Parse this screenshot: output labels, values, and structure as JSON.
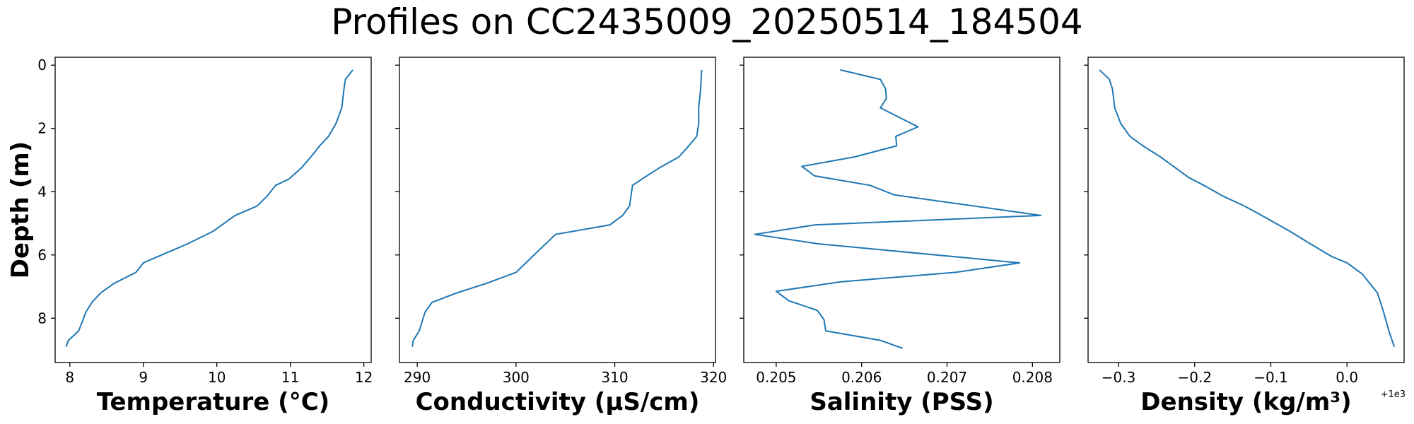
{
  "figure": {
    "title": "Profiles on CC2435009_20250514_184504",
    "series_color": "#1f77b4"
  },
  "chart_data": [
    {
      "type": "line",
      "xlabel": "Temperature (°C)",
      "ylabel": "Depth (m)",
      "xlim": [
        7.8,
        12.1
      ],
      "ylim": [
        9.4,
        -0.25
      ],
      "y_inverted": true,
      "xticks": [
        8,
        9,
        10,
        11,
        12
      ],
      "xtick_labels": [
        "8",
        "9",
        "10",
        "11",
        "12"
      ],
      "yticks": [
        0,
        2,
        4,
        6,
        8
      ],
      "ytick_labels": [
        "0",
        "2",
        "4",
        "6",
        "8"
      ],
      "series": [
        {
          "x": [
            11.85,
            11.75,
            11.73,
            11.7,
            11.62,
            11.52,
            11.4,
            11.28,
            11.15,
            10.98,
            10.8,
            10.68,
            10.55,
            10.25,
            9.95,
            9.6,
            9.0,
            8.9,
            8.6,
            8.42,
            8.3,
            8.22,
            8.12,
            7.98,
            7.95
          ],
          "y": [
            0.15,
            0.45,
            0.75,
            1.35,
            1.85,
            2.25,
            2.55,
            2.9,
            3.25,
            3.6,
            3.8,
            4.15,
            4.45,
            4.75,
            5.25,
            5.65,
            6.25,
            6.55,
            6.9,
            7.2,
            7.5,
            7.8,
            8.4,
            8.7,
            8.9
          ]
        }
      ]
    },
    {
      "type": "line",
      "xlabel": "Conductivity (µS/cm)",
      "ylabel": "",
      "xlim": [
        288.2,
        320.2
      ],
      "ylim": [
        9.4,
        -0.25
      ],
      "y_inverted": true,
      "xticks": [
        290,
        300,
        310,
        320
      ],
      "xtick_labels": [
        "290",
        "300",
        "310",
        "320"
      ],
      "yticks": [
        0,
        2,
        4,
        6,
        8
      ],
      "ytick_labels": [
        "",
        "",
        "",
        "",
        ""
      ],
      "series": [
        {
          "x": [
            318.8,
            318.7,
            318.5,
            318.5,
            318.3,
            317.5,
            316.5,
            314.5,
            313.0,
            311.8,
            311.5,
            310.8,
            309.5,
            304.0,
            301.0,
            300.0,
            297.0,
            294.0,
            291.5,
            290.8,
            290.2,
            289.6,
            289.5
          ],
          "y": [
            0.15,
            0.75,
            1.35,
            1.85,
            2.25,
            2.55,
            2.9,
            3.25,
            3.55,
            3.8,
            4.45,
            4.75,
            5.05,
            5.35,
            6.25,
            6.55,
            6.9,
            7.2,
            7.5,
            7.8,
            8.4,
            8.7,
            8.9
          ]
        }
      ]
    },
    {
      "type": "line",
      "xlabel": "Salinity (PSS)",
      "ylabel": "",
      "xlim": [
        0.20462,
        0.20832
      ],
      "ylim": [
        9.4,
        -0.25
      ],
      "y_inverted": true,
      "xticks": [
        0.205,
        0.206,
        0.207,
        0.208
      ],
      "xtick_labels": [
        "0.205",
        "0.206",
        "0.207",
        "0.208"
      ],
      "yticks": [
        0,
        2,
        4,
        6,
        8
      ],
      "ytick_labels": [
        "",
        "",
        "",
        "",
        ""
      ],
      "series": [
        {
          "x": [
            0.20575,
            0.20622,
            0.20628,
            0.20629,
            0.20622,
            0.20666,
            0.2064,
            0.20641,
            0.20592,
            0.2053,
            0.20545,
            0.2061,
            0.20638,
            0.2081,
            0.20545,
            0.20475,
            0.2055,
            0.20785,
            0.2071,
            0.20575,
            0.205,
            0.20515,
            0.20548,
            0.20556,
            0.20558,
            0.20622,
            0.20648
          ],
          "y": [
            0.15,
            0.45,
            0.75,
            1.05,
            1.35,
            1.95,
            2.25,
            2.55,
            2.9,
            3.2,
            3.5,
            3.8,
            4.1,
            4.75,
            5.05,
            5.35,
            5.65,
            6.25,
            6.55,
            6.85,
            7.15,
            7.45,
            7.75,
            8.05,
            8.4,
            8.7,
            8.95
          ]
        }
      ]
    },
    {
      "type": "line",
      "xlabel": "Density (kg/m³)",
      "ylabel": "",
      "x_offset_label": "+1e3",
      "xlim": [
        -0.34,
        0.075
      ],
      "ylim": [
        9.4,
        -0.25
      ],
      "y_inverted": true,
      "xticks": [
        -0.3,
        -0.2,
        -0.1,
        0.0
      ],
      "xtick_labels": [
        "−0.3",
        "−0.2",
        "−0.1",
        "0.0"
      ],
      "yticks": [
        0,
        2,
        4,
        6,
        8
      ],
      "ytick_labels": [
        "",
        "",
        "",
        "",
        ""
      ],
      "series": [
        {
          "x": [
            -0.325,
            -0.312,
            -0.308,
            -0.305,
            -0.297,
            -0.285,
            -0.268,
            -0.245,
            -0.225,
            -0.208,
            -0.188,
            -0.162,
            -0.135,
            -0.112,
            -0.075,
            -0.048,
            -0.02,
            0.0,
            0.02,
            0.03,
            0.04,
            0.048,
            0.055,
            0.062
          ],
          "y": [
            0.15,
            0.45,
            0.75,
            1.35,
            1.85,
            2.25,
            2.55,
            2.9,
            3.25,
            3.55,
            3.8,
            4.15,
            4.45,
            4.75,
            5.25,
            5.65,
            6.05,
            6.25,
            6.6,
            6.9,
            7.2,
            7.8,
            8.4,
            8.9
          ]
        }
      ]
    }
  ]
}
